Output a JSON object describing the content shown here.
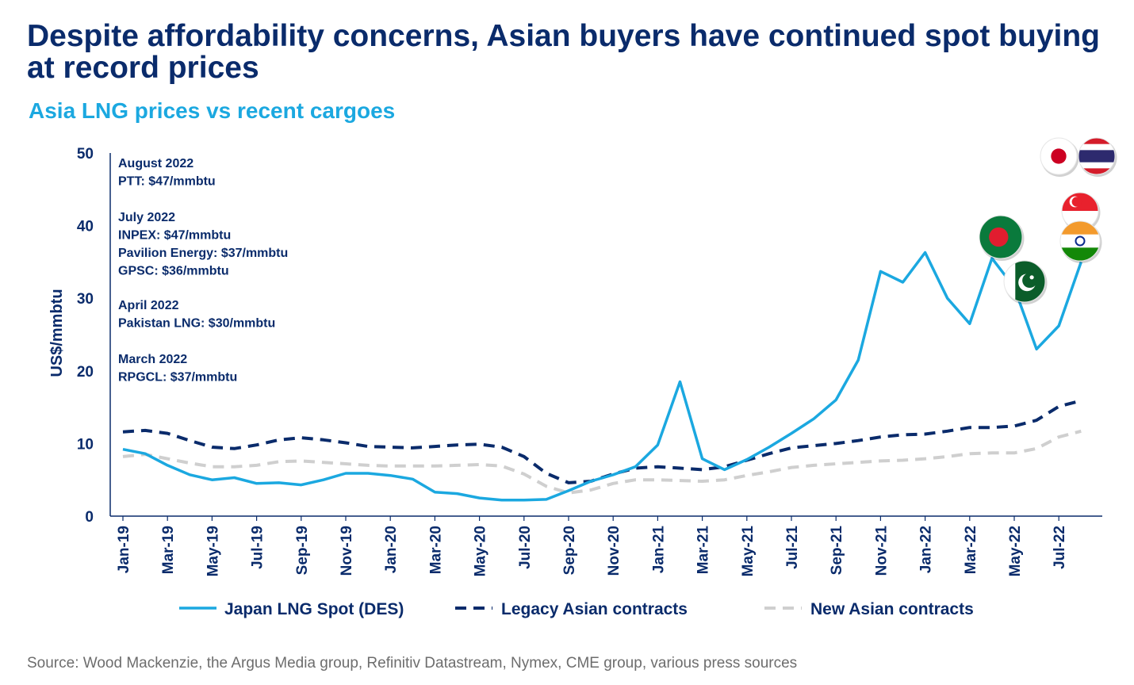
{
  "title": "Despite affordability concerns, Asian buyers have continued spot buying at record prices",
  "subtitle": "Asia LNG prices vs recent cargoes",
  "source": "Source: Wood Mackenzie, the Argus Media group, Refinitiv Datastream, Nymex, CME group, various press sources",
  "annotations": [
    {
      "date": "August 2022",
      "lines": [
        "PTT: $47/mmbtu"
      ]
    },
    {
      "date": "July 2022",
      "lines": [
        "INPEX: $47/mmbtu",
        "Pavilion Energy: $37/mmbtu",
        "GPSC: $36/mmbtu"
      ]
    },
    {
      "date": "April 2022",
      "lines": [
        "Pakistan LNG: $30/mmbtu"
      ]
    },
    {
      "date": "March 2022",
      "lines": [
        "RPGCL: $37/mmbtu"
      ]
    }
  ],
  "flags": [
    {
      "name": "japan-flag",
      "label": "Japan",
      "colors": [
        "#ffffff",
        "#cc0022"
      ]
    },
    {
      "name": "thailand-flag",
      "label": "Thailand",
      "colors": [
        "#d41c2a",
        "#ffffff",
        "#2d2a6e"
      ]
    },
    {
      "name": "singapore-flag",
      "label": "Singapore",
      "colors": [
        "#e8212d",
        "#ffffff"
      ]
    },
    {
      "name": "india-flag",
      "label": "India",
      "colors": [
        "#f39a2c",
        "#ffffff",
        "#138808",
        "#0a2b8c"
      ]
    },
    {
      "name": "bangladesh-flag",
      "label": "Bangladesh",
      "colors": [
        "#0a7a3c",
        "#e11d2f"
      ]
    },
    {
      "name": "pakistan-flag",
      "label": "Pakistan",
      "colors": [
        "#0b5d2a",
        "#ffffff"
      ]
    }
  ],
  "chart_data": {
    "type": "line",
    "ylabel": "US$/mmbtu",
    "xlabel": "",
    "ylim": [
      0,
      50
    ],
    "yticks": [
      0,
      10,
      20,
      30,
      40,
      50
    ],
    "x": [
      "Jan-19",
      "Feb-19",
      "Mar-19",
      "Apr-19",
      "May-19",
      "Jun-19",
      "Jul-19",
      "Aug-19",
      "Sep-19",
      "Oct-19",
      "Nov-19",
      "Dec-19",
      "Jan-20",
      "Feb-20",
      "Mar-20",
      "Apr-20",
      "May-20",
      "Jun-20",
      "Jul-20",
      "Aug-20",
      "Sep-20",
      "Oct-20",
      "Nov-20",
      "Dec-20",
      "Jan-21",
      "Feb-21",
      "Mar-21",
      "Apr-21",
      "May-21",
      "Jun-21",
      "Jul-21",
      "Aug-21",
      "Sep-21",
      "Oct-21",
      "Nov-21",
      "Dec-21",
      "Jan-22",
      "Feb-22",
      "Mar-22",
      "Apr-22",
      "May-22",
      "Jun-22",
      "Jul-22",
      "Aug-22"
    ],
    "xtick_labels": [
      "Jan-19",
      "Mar-19",
      "May-19",
      "Jul-19",
      "Sep-19",
      "Nov-19",
      "Jan-20",
      "Mar-20",
      "May-20",
      "Jul-20",
      "Sep-20",
      "Nov-20",
      "Jan-21",
      "Mar-21",
      "May-21",
      "Jul-21",
      "Sep-21",
      "Nov-21",
      "Jan-22",
      "Mar-22",
      "May-22",
      "Jul-22"
    ],
    "legend_position": "bottom",
    "grid": false,
    "series": [
      {
        "name": "Japan LNG Spot (DES)",
        "color": "#1ba8e0",
        "style": "solid",
        "values": [
          9.2,
          8.6,
          7.0,
          5.7,
          5.0,
          5.3,
          4.5,
          4.6,
          4.3,
          5.0,
          5.9,
          5.9,
          5.6,
          5.1,
          3.3,
          3.1,
          2.5,
          2.2,
          2.2,
          2.3,
          3.5,
          4.8,
          5.7,
          6.8,
          9.8,
          18.5,
          7.9,
          6.4,
          7.8,
          9.5,
          11.4,
          13.4,
          16.0,
          21.5,
          33.7,
          32.2,
          36.3,
          30.0,
          26.5,
          35.5,
          31.5,
          23.0,
          26.2,
          35.0
        ]
      },
      {
        "name": "Legacy Asian contracts",
        "color": "#0a2b6b",
        "style": "dashed",
        "values": [
          11.6,
          11.8,
          11.4,
          10.4,
          9.5,
          9.3,
          9.8,
          10.5,
          10.8,
          10.5,
          10.1,
          9.6,
          9.5,
          9.4,
          9.6,
          9.8,
          9.9,
          9.5,
          8.2,
          5.9,
          4.6,
          4.8,
          5.8,
          6.6,
          6.8,
          6.6,
          6.4,
          6.8,
          7.7,
          8.6,
          9.4,
          9.7,
          10.0,
          10.4,
          10.9,
          11.2,
          11.3,
          11.7,
          12.2,
          12.2,
          12.4,
          13.2,
          15.1,
          15.9
        ]
      },
      {
        "name": "New Asian contracts",
        "color": "#cfcfcf",
        "style": "dashed",
        "values": [
          8.2,
          8.5,
          7.9,
          7.3,
          6.8,
          6.8,
          7.0,
          7.5,
          7.6,
          7.4,
          7.2,
          7.0,
          6.9,
          6.9,
          6.9,
          7.0,
          7.1,
          6.9,
          5.8,
          4.1,
          3.2,
          3.6,
          4.5,
          5.0,
          5.0,
          4.9,
          4.8,
          5.0,
          5.6,
          6.1,
          6.7,
          7.0,
          7.2,
          7.4,
          7.6,
          7.7,
          7.9,
          8.2,
          8.6,
          8.7,
          8.7,
          9.3,
          10.9,
          11.7
        ]
      }
    ]
  }
}
